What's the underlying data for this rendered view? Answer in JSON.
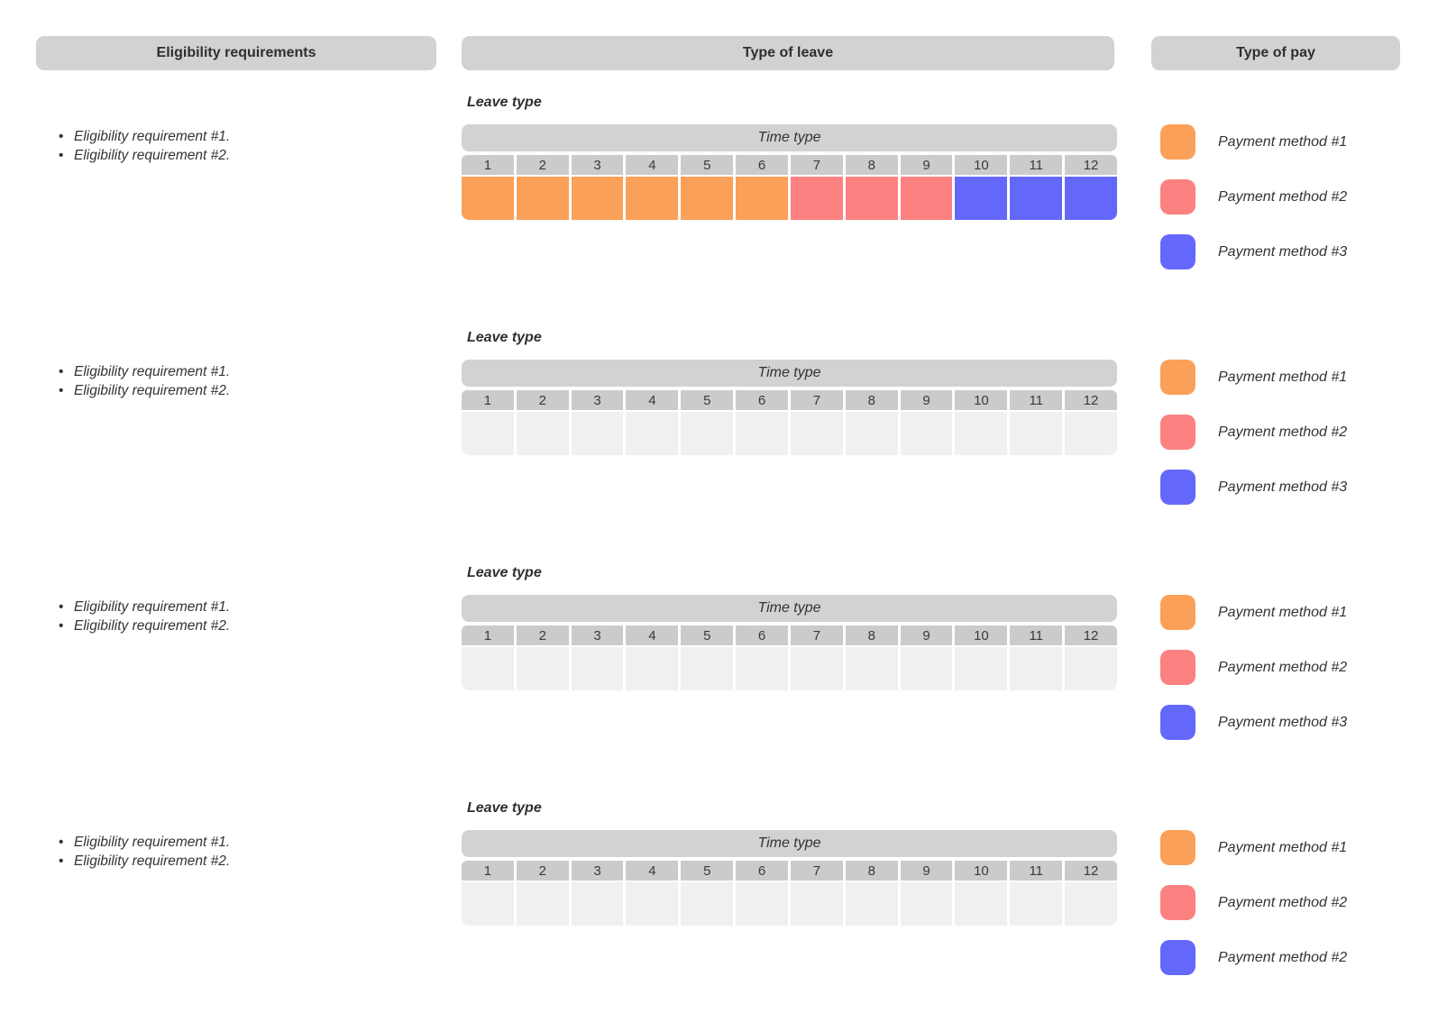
{
  "columns": {
    "eligibility": {
      "title": "Eligibility requirements"
    },
    "leave": {
      "title": "Type of leave"
    },
    "pay": {
      "title": "Type of pay"
    }
  },
  "palette": {
    "method1": "#FBA058",
    "method2": "#FC8181",
    "method3": "#6468FA",
    "empty": "#F0F0F0",
    "header_gray": "#D2D2D2",
    "subheader_gray": "#CBCBCB"
  },
  "rows": [
    {
      "eligibility_items": [
        "Eligibility requirement #1.",
        "Eligibility requirement #2."
      ],
      "leave_type_label": "Leave type",
      "time_type_label": "Time type",
      "periods": [
        "1",
        "2",
        "3",
        "4",
        "5",
        "6",
        "7",
        "8",
        "9",
        "10",
        "11",
        "12"
      ],
      "period_fills": [
        "method1",
        "method1",
        "method1",
        "method1",
        "method1",
        "method1",
        "method2",
        "method2",
        "method2",
        "method3",
        "method3",
        "method3"
      ],
      "payment_methods": [
        {
          "color": "method1",
          "label": "Payment method #1"
        },
        {
          "color": "method2",
          "label": "Payment method #2"
        },
        {
          "color": "method3",
          "label": "Payment method #3"
        }
      ]
    },
    {
      "eligibility_items": [
        "Eligibility requirement #1.",
        "Eligibility requirement #2."
      ],
      "leave_type_label": "Leave type",
      "time_type_label": "Time type",
      "periods": [
        "1",
        "2",
        "3",
        "4",
        "5",
        "6",
        "7",
        "8",
        "9",
        "10",
        "11",
        "12"
      ],
      "period_fills": [
        "empty",
        "empty",
        "empty",
        "empty",
        "empty",
        "empty",
        "empty",
        "empty",
        "empty",
        "empty",
        "empty",
        "empty"
      ],
      "payment_methods": [
        {
          "color": "method1",
          "label": "Payment method #1"
        },
        {
          "color": "method2",
          "label": "Payment method #2"
        },
        {
          "color": "method3",
          "label": "Payment method #3"
        }
      ]
    },
    {
      "eligibility_items": [
        "Eligibility requirement #1.",
        "Eligibility requirement #2."
      ],
      "leave_type_label": "Leave type",
      "time_type_label": "Time type",
      "periods": [
        "1",
        "2",
        "3",
        "4",
        "5",
        "6",
        "7",
        "8",
        "9",
        "10",
        "11",
        "12"
      ],
      "period_fills": [
        "empty",
        "empty",
        "empty",
        "empty",
        "empty",
        "empty",
        "empty",
        "empty",
        "empty",
        "empty",
        "empty",
        "empty"
      ],
      "payment_methods": [
        {
          "color": "method1",
          "label": "Payment method #1"
        },
        {
          "color": "method2",
          "label": "Payment method #2"
        },
        {
          "color": "method3",
          "label": "Payment method #3"
        }
      ]
    },
    {
      "eligibility_items": [
        "Eligibility requirement #1.",
        "Eligibility requirement #2."
      ],
      "leave_type_label": "Leave type",
      "time_type_label": "Time type",
      "periods": [
        "1",
        "2",
        "3",
        "4",
        "5",
        "6",
        "7",
        "8",
        "9",
        "10",
        "11",
        "12"
      ],
      "period_fills": [
        "empty",
        "empty",
        "empty",
        "empty",
        "empty",
        "empty",
        "empty",
        "empty",
        "empty",
        "empty",
        "empty",
        "empty"
      ],
      "payment_methods": [
        {
          "color": "method1",
          "label": "Payment method #1"
        },
        {
          "color": "method2",
          "label": "Payment method #2"
        },
        {
          "color": "method3",
          "label": "Payment method #2"
        }
      ]
    }
  ]
}
